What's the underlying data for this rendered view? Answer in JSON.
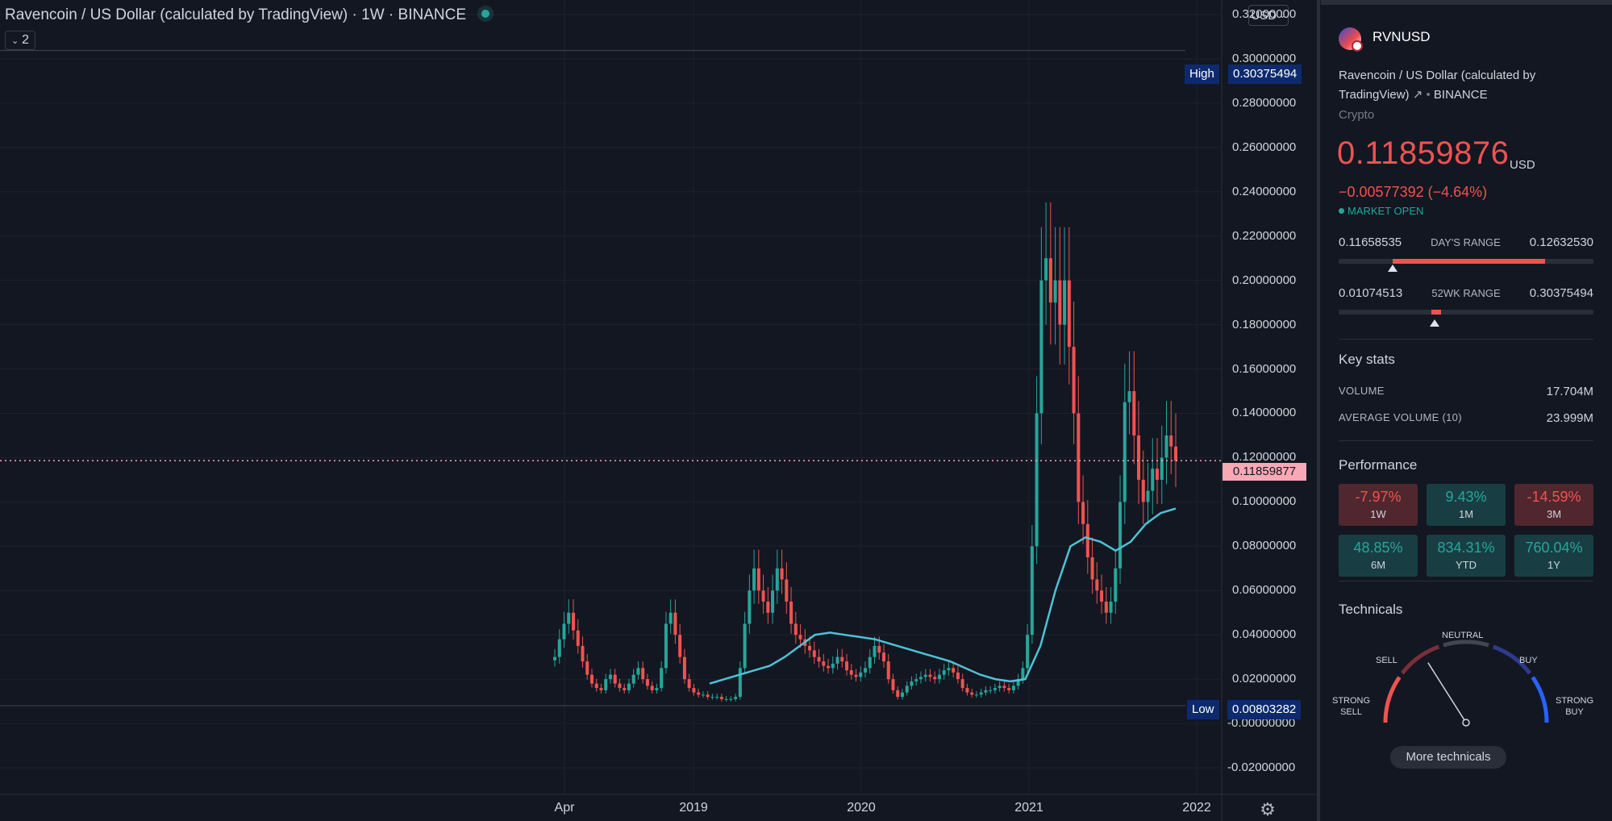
{
  "header": {
    "title": "Ravencoin / US Dollar (calculated by TradingView)",
    "separator": "·",
    "interval": "1W",
    "exchange": "BINANCE",
    "indicator_count": "2",
    "currency": "USD"
  },
  "price_scale": [
    "0.32000000",
    "0.30000000",
    "0.28000000",
    "0.26000000",
    "0.24000000",
    "0.22000000",
    "0.20000000",
    "0.18000000",
    "0.16000000",
    "0.14000000",
    "0.12000000",
    "0.10000000",
    "0.08000000",
    "0.06000000",
    "0.04000000",
    "0.02000000",
    "-0.00000000",
    "-0.02000000"
  ],
  "time_scale": [
    "Apr",
    "2019",
    "2020",
    "2021",
    "2022"
  ],
  "markers": {
    "high_label": "High",
    "high_value": "0.30375494",
    "low_label": "Low",
    "low_value": "0.00803282",
    "current_value": "0.11859877"
  },
  "chart_data": {
    "type": "candlestick",
    "interval": "1W",
    "ylim": [
      -0.03,
      0.325
    ],
    "x_ticks": [
      "Apr",
      "2019",
      "2020",
      "2021",
      "2022"
    ],
    "high": 0.30375494,
    "low": 0.00803282,
    "last": 0.11859877,
    "candles_approx_close": [
      0.03,
      0.038,
      0.045,
      0.05,
      0.042,
      0.035,
      0.028,
      0.022,
      0.018,
      0.016,
      0.015,
      0.02,
      0.022,
      0.018,
      0.016,
      0.015,
      0.018,
      0.022,
      0.025,
      0.02,
      0.017,
      0.015,
      0.016,
      0.025,
      0.045,
      0.05,
      0.04,
      0.03,
      0.02,
      0.016,
      0.014,
      0.013,
      0.013,
      0.012,
      0.012,
      0.012,
      0.011,
      0.011,
      0.011,
      0.012,
      0.025,
      0.045,
      0.06,
      0.07,
      0.06,
      0.055,
      0.05,
      0.06,
      0.07,
      0.065,
      0.055,
      0.045,
      0.04,
      0.038,
      0.035,
      0.033,
      0.03,
      0.028,
      0.026,
      0.025,
      0.027,
      0.03,
      0.028,
      0.024,
      0.022,
      0.021,
      0.023,
      0.025,
      0.03,
      0.035,
      0.032,
      0.028,
      0.02,
      0.015,
      0.012,
      0.014,
      0.017,
      0.019,
      0.02,
      0.021,
      0.022,
      0.021,
      0.02,
      0.022,
      0.024,
      0.025,
      0.023,
      0.02,
      0.016,
      0.014,
      0.013,
      0.013,
      0.014,
      0.015,
      0.015,
      0.016,
      0.017,
      0.016,
      0.015,
      0.017,
      0.02,
      0.025,
      0.04,
      0.08,
      0.14,
      0.2,
      0.21,
      0.19,
      0.2,
      0.18,
      0.2,
      0.17,
      0.14,
      0.1,
      0.09,
      0.075,
      0.065,
      0.06,
      0.055,
      0.05,
      0.055,
      0.07,
      0.1,
      0.145,
      0.15,
      0.13,
      0.11,
      0.1,
      0.105,
      0.115,
      0.11,
      0.12,
      0.13,
      0.125,
      0.1186
    ],
    "ma_approx": [
      0.018,
      0.02,
      0.022,
      0.024,
      0.026,
      0.03,
      0.035,
      0.04,
      0.041,
      0.04,
      0.039,
      0.038,
      0.036,
      0.034,
      0.032,
      0.03,
      0.028,
      0.025,
      0.022,
      0.02,
      0.019,
      0.02,
      0.035,
      0.06,
      0.08,
      0.084,
      0.082,
      0.078,
      0.082,
      0.09,
      0.095,
      0.097
    ]
  },
  "panel": {
    "symbol": "RVNUSD",
    "full_name": "Ravencoin / US Dollar (calculated by TradingView)",
    "link_icon": "↗",
    "bullet": "•",
    "exchange": "BINANCE",
    "type": "Crypto",
    "last_price": "0.11859876",
    "currency": "USD",
    "change": "−0.00577392 (−4.64%)",
    "market_status": "MARKET OPEN",
    "days_range": {
      "low": "0.11658535",
      "title": "DAY'S RANGE",
      "high": "0.12632530"
    },
    "wk52_range": {
      "low": "0.01074513",
      "title": "52WK RANGE",
      "high": "0.30375494"
    },
    "key_stats_title": "Key stats",
    "volume_label": "VOLUME",
    "volume_value": "17.704M",
    "avg_volume_label": "AVERAGE VOLUME (10)",
    "avg_volume_value": "23.999M",
    "performance_title": "Performance",
    "performance": [
      {
        "value": "-7.97%",
        "period": "1W",
        "trend": "neg"
      },
      {
        "value": "9.43%",
        "period": "1M",
        "trend": "pos"
      },
      {
        "value": "-14.59%",
        "period": "3M",
        "trend": "neg"
      },
      {
        "value": "48.85%",
        "period": "6M",
        "trend": "pos"
      },
      {
        "value": "834.31%",
        "period": "YTD",
        "trend": "pos"
      },
      {
        "value": "760.04%",
        "period": "1Y",
        "trend": "pos"
      }
    ],
    "technicals_title": "Technicals",
    "gauge": {
      "strong_sell_1": "STRONG",
      "strong_sell_2": "SELL",
      "sell": "SELL",
      "neutral": "NEUTRAL",
      "buy": "BUY",
      "strong_buy_1": "STRONG",
      "strong_buy_2": "BUY"
    },
    "more_technicals": "More technicals"
  },
  "colors": {
    "background": "#131722",
    "up": "#26a69a",
    "down": "#ef5350",
    "ma": "#4dc3d6",
    "high_low_tag": "#0e2a6e",
    "current_tag": "#f7a9b6"
  }
}
